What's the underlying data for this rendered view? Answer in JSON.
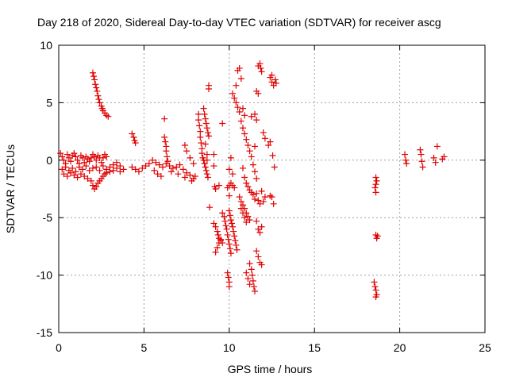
{
  "chart_data": {
    "type": "scatter",
    "title": "Day 218 of 2020, Sidereal Day-to-day VTEC variation (SDTVAR) for receiver ascg",
    "xlabel": "GPS time / hours",
    "ylabel": "SDTVAR / TECUs",
    "xlim": [
      0,
      25
    ],
    "ylim": [
      -15,
      10
    ],
    "xticks": [
      0,
      5,
      10,
      15,
      20,
      25
    ],
    "yticks": [
      -15,
      -10,
      -5,
      0,
      5,
      10
    ],
    "grid": true,
    "marker": "plus",
    "color": "#e00000",
    "series": [
      {
        "name": "SDTVAR",
        "points": [
          [
            0.1,
            0.6
          ],
          [
            0.2,
            0.3
          ],
          [
            0.3,
            0.0
          ],
          [
            0.4,
            -0.3
          ],
          [
            0.5,
            0.5
          ],
          [
            0.6,
            0.2
          ],
          [
            0.7,
            -0.1
          ],
          [
            0.8,
            0.4
          ],
          [
            0.9,
            0.6
          ],
          [
            1.0,
            0.3
          ],
          [
            1.1,
            0.0
          ],
          [
            1.2,
            -0.3
          ],
          [
            1.3,
            0.4
          ],
          [
            1.4,
            0.2
          ],
          [
            1.5,
            -0.2
          ],
          [
            1.6,
            0.3
          ],
          [
            1.7,
            0.1
          ],
          [
            1.8,
            -0.1
          ],
          [
            1.9,
            0.2
          ],
          [
            2.0,
            0.5
          ],
          [
            2.1,
            0.3
          ],
          [
            2.2,
            0.0
          ],
          [
            2.3,
            0.4
          ],
          [
            2.4,
            0.2
          ],
          [
            2.5,
            -0.2
          ],
          [
            2.6,
            0.2
          ],
          [
            2.7,
            0.5
          ],
          [
            2.8,
            0.3
          ],
          [
            0.2,
            -0.8
          ],
          [
            0.4,
            -0.6
          ],
          [
            0.6,
            -0.9
          ],
          [
            0.8,
            -0.7
          ],
          [
            1.0,
            -1.0
          ],
          [
            1.2,
            -0.6
          ],
          [
            1.4,
            -0.8
          ],
          [
            1.6,
            -0.5
          ],
          [
            1.8,
            -0.9
          ],
          [
            2.0,
            -0.7
          ],
          [
            2.2,
            -0.6
          ],
          [
            2.4,
            -0.9
          ],
          [
            2.6,
            -0.5
          ],
          [
            2.8,
            -0.8
          ],
          [
            3.0,
            -0.6
          ],
          [
            3.2,
            -0.9
          ],
          [
            3.4,
            -0.7
          ],
          [
            3.6,
            -1.0
          ],
          [
            0.3,
            -1.2
          ],
          [
            0.5,
            -1.4
          ],
          [
            0.7,
            -1.1
          ],
          [
            0.9,
            -1.3
          ],
          [
            1.1,
            -1.5
          ],
          [
            1.3,
            -1.2
          ],
          [
            1.5,
            -1.4
          ],
          [
            1.7,
            -1.6
          ],
          [
            1.9,
            -1.8
          ],
          [
            2.0,
            -2.2
          ],
          [
            2.1,
            -2.5
          ],
          [
            2.2,
            -2.3
          ],
          [
            2.3,
            -2.0
          ],
          [
            2.4,
            -1.8
          ],
          [
            2.5,
            -1.6
          ],
          [
            2.6,
            -1.4
          ],
          [
            2.7,
            -1.2
          ],
          [
            2.8,
            -1.1
          ],
          [
            3.0,
            -1.0
          ],
          [
            3.2,
            -0.4
          ],
          [
            3.4,
            -0.2
          ],
          [
            3.6,
            -0.5
          ],
          [
            3.8,
            -0.8
          ],
          [
            2.0,
            7.6
          ],
          [
            2.05,
            7.3
          ],
          [
            2.1,
            7.0
          ],
          [
            2.15,
            6.6
          ],
          [
            2.2,
            6.3
          ],
          [
            2.25,
            6.0
          ],
          [
            2.3,
            5.6
          ],
          [
            2.35,
            5.3
          ],
          [
            2.4,
            5.0
          ],
          [
            2.5,
            4.7
          ],
          [
            2.55,
            4.5
          ],
          [
            2.6,
            4.3
          ],
          [
            2.7,
            4.1
          ],
          [
            2.8,
            3.9
          ],
          [
            2.9,
            3.8
          ],
          [
            4.3,
            2.3
          ],
          [
            4.4,
            2.0
          ],
          [
            4.45,
            1.7
          ],
          [
            4.5,
            1.5
          ],
          [
            4.3,
            -0.6
          ],
          [
            4.5,
            -0.8
          ],
          [
            4.7,
            -1.0
          ],
          [
            4.9,
            -0.7
          ],
          [
            5.1,
            -0.5
          ],
          [
            5.3,
            -0.3
          ],
          [
            5.5,
            0.0
          ],
          [
            5.7,
            -0.2
          ],
          [
            5.9,
            -0.4
          ],
          [
            6.1,
            -0.6
          ],
          [
            6.3,
            -0.3
          ],
          [
            6.5,
            -0.5
          ],
          [
            6.7,
            -0.7
          ],
          [
            6.9,
            -0.6
          ],
          [
            7.1,
            -0.4
          ],
          [
            7.3,
            -0.8
          ],
          [
            7.5,
            -1.1
          ],
          [
            7.7,
            -1.3
          ],
          [
            7.9,
            -1.6
          ],
          [
            5.6,
            -0.9
          ],
          [
            5.8,
            -1.2
          ],
          [
            6.0,
            -1.4
          ],
          [
            6.6,
            -1.0
          ],
          [
            7.0,
            -1.2
          ],
          [
            7.4,
            -1.5
          ],
          [
            7.8,
            -1.8
          ],
          [
            8.0,
            -1.4
          ],
          [
            6.2,
            3.6
          ],
          [
            6.2,
            2.0
          ],
          [
            6.25,
            1.6
          ],
          [
            6.3,
            1.2
          ],
          [
            6.3,
            0.8
          ],
          [
            6.35,
            0.3
          ],
          [
            6.4,
            -0.1
          ],
          [
            7.4,
            1.3
          ],
          [
            7.5,
            0.8
          ],
          [
            7.7,
            0.2
          ],
          [
            7.9,
            -0.3
          ],
          [
            8.2,
            4.0
          ],
          [
            8.2,
            3.5
          ],
          [
            8.25,
            3.0
          ],
          [
            8.3,
            2.5
          ],
          [
            8.3,
            2.0
          ],
          [
            8.35,
            1.5
          ],
          [
            8.4,
            1.0
          ],
          [
            8.4,
            0.6
          ],
          [
            8.45,
            0.2
          ],
          [
            8.5,
            0.0
          ],
          [
            8.55,
            -0.3
          ],
          [
            8.6,
            -0.6
          ],
          [
            8.65,
            -0.9
          ],
          [
            8.7,
            -1.2
          ],
          [
            8.75,
            -1.5
          ],
          [
            8.5,
            4.5
          ],
          [
            8.55,
            4.0
          ],
          [
            8.6,
            3.6
          ],
          [
            8.65,
            3.2
          ],
          [
            8.7,
            2.8
          ],
          [
            8.75,
            2.4
          ],
          [
            8.8,
            2.1
          ],
          [
            8.6,
            1.4
          ],
          [
            8.7,
            0.5
          ],
          [
            8.8,
            6.5
          ],
          [
            8.8,
            6.2
          ],
          [
            8.7,
            0.0
          ],
          [
            8.85,
            -4.1
          ],
          [
            9.1,
            0.5
          ],
          [
            9.1,
            -0.5
          ],
          [
            9.15,
            -2.3
          ],
          [
            9.2,
            -2.5
          ],
          [
            9.4,
            -2.2
          ],
          [
            9.1,
            -5.5
          ],
          [
            9.2,
            -5.8
          ],
          [
            9.3,
            -6.2
          ],
          [
            9.35,
            -6.5
          ],
          [
            9.4,
            -6.8
          ],
          [
            9.5,
            -7.0
          ],
          [
            9.6,
            -7.2
          ],
          [
            9.2,
            -8.0
          ],
          [
            9.3,
            -7.6
          ],
          [
            9.4,
            -7.2
          ],
          [
            9.5,
            -6.9
          ],
          [
            9.6,
            -4.6
          ],
          [
            9.7,
            -4.9
          ],
          [
            9.75,
            -5.3
          ],
          [
            9.8,
            -5.7
          ],
          [
            9.85,
            -6.0
          ],
          [
            9.9,
            -6.5
          ],
          [
            9.95,
            -6.9
          ],
          [
            10.0,
            -7.3
          ],
          [
            10.05,
            -7.7
          ],
          [
            10.1,
            -8.1
          ],
          [
            10.0,
            -4.4
          ],
          [
            10.05,
            -4.8
          ],
          [
            10.1,
            -5.2
          ],
          [
            10.15,
            -5.5
          ],
          [
            10.2,
            -5.8
          ],
          [
            10.25,
            -6.2
          ],
          [
            10.3,
            -6.6
          ],
          [
            10.35,
            -7.0
          ],
          [
            10.4,
            -7.4
          ],
          [
            10.45,
            -7.8
          ],
          [
            9.9,
            -2.4
          ],
          [
            10.0,
            -2.2
          ],
          [
            10.1,
            -2.0
          ],
          [
            10.2,
            -2.2
          ],
          [
            10.3,
            -2.4
          ],
          [
            9.9,
            -9.8
          ],
          [
            9.95,
            -10.2
          ],
          [
            10.0,
            -10.6
          ],
          [
            10.0,
            -11.0
          ],
          [
            10.0,
            -0.8
          ],
          [
            10.1,
            0.2
          ],
          [
            10.2,
            -1.2
          ],
          [
            9.6,
            3.2
          ],
          [
            10.0,
            -3.1
          ],
          [
            10.4,
            6.5
          ],
          [
            10.5,
            7.8
          ],
          [
            10.6,
            8.0
          ],
          [
            10.7,
            7.1
          ],
          [
            10.2,
            5.8
          ],
          [
            10.3,
            5.4
          ],
          [
            10.4,
            5.0
          ],
          [
            10.5,
            4.6
          ],
          [
            10.6,
            4.2
          ],
          [
            10.8,
            4.5
          ],
          [
            10.9,
            3.9
          ],
          [
            10.7,
            3.4
          ],
          [
            10.8,
            2.8
          ],
          [
            10.9,
            2.3
          ],
          [
            11.0,
            1.8
          ],
          [
            11.1,
            1.3
          ],
          [
            11.2,
            0.8
          ],
          [
            11.3,
            0.3
          ],
          [
            10.8,
            -0.7
          ],
          [
            10.9,
            -1.5
          ],
          [
            11.0,
            -2.0
          ],
          [
            11.1,
            -2.3
          ],
          [
            11.2,
            -2.6
          ],
          [
            11.3,
            -2.8
          ],
          [
            11.4,
            -3.0
          ],
          [
            10.6,
            -3.2
          ],
          [
            10.7,
            -3.6
          ],
          [
            10.8,
            -3.9
          ],
          [
            10.9,
            -4.2
          ],
          [
            11.0,
            -4.6
          ],
          [
            11.1,
            -4.9
          ],
          [
            11.2,
            -5.2
          ],
          [
            10.7,
            -4.2
          ],
          [
            10.8,
            -4.6
          ],
          [
            10.9,
            -5.0
          ],
          [
            11.0,
            -5.4
          ],
          [
            11.2,
            -9.0
          ],
          [
            11.3,
            -9.5
          ],
          [
            11.35,
            -10.0
          ],
          [
            11.4,
            -10.5
          ],
          [
            11.45,
            -11.0
          ],
          [
            11.5,
            -11.4
          ],
          [
            11.0,
            -9.8
          ],
          [
            11.1,
            -10.3
          ],
          [
            11.2,
            -10.8
          ],
          [
            11.6,
            -7.9
          ],
          [
            11.7,
            -8.4
          ],
          [
            11.8,
            -8.9
          ],
          [
            11.9,
            -9.1
          ],
          [
            11.7,
            -6.0
          ],
          [
            11.8,
            -6.3
          ],
          [
            11.9,
            -5.8
          ],
          [
            11.6,
            -5.3
          ],
          [
            11.4,
            -0.4
          ],
          [
            11.5,
            -1.0
          ],
          [
            11.6,
            -1.6
          ],
          [
            11.5,
            1.2
          ],
          [
            11.6,
            3.5
          ],
          [
            11.7,
            8.2
          ],
          [
            11.8,
            8.4
          ],
          [
            11.85,
            8.0
          ],
          [
            11.9,
            7.7
          ],
          [
            11.6,
            6.0
          ],
          [
            11.7,
            5.8
          ],
          [
            11.3,
            3.8
          ],
          [
            11.5,
            4.0
          ],
          [
            11.5,
            -3.4
          ],
          [
            11.6,
            -2.9
          ],
          [
            11.7,
            -3.5
          ],
          [
            11.8,
            -3.8
          ],
          [
            11.9,
            -2.7
          ],
          [
            12.0,
            -3.6
          ],
          [
            12.1,
            -3.2
          ],
          [
            12.0,
            2.4
          ],
          [
            12.1,
            1.9
          ],
          [
            12.3,
            1.3
          ],
          [
            12.4,
            1.6
          ],
          [
            12.4,
            7.2
          ],
          [
            12.5,
            6.8
          ],
          [
            12.6,
            6.5
          ],
          [
            12.7,
            7.0
          ],
          [
            12.75,
            6.7
          ],
          [
            12.5,
            7.4
          ],
          [
            12.4,
            -3.1
          ],
          [
            12.5,
            -3.2
          ],
          [
            12.6,
            -3.8
          ],
          [
            12.65,
            -0.6
          ],
          [
            12.55,
            0.4
          ],
          [
            18.6,
            -1.5
          ],
          [
            18.65,
            -1.8
          ],
          [
            18.6,
            -2.1
          ],
          [
            18.55,
            -2.4
          ],
          [
            18.6,
            -2.8
          ],
          [
            18.6,
            -6.5
          ],
          [
            18.65,
            -6.8
          ],
          [
            18.7,
            -6.6
          ],
          [
            18.5,
            -10.6
          ],
          [
            18.55,
            -11.0
          ],
          [
            18.6,
            -11.3
          ],
          [
            18.65,
            -11.7
          ],
          [
            18.6,
            -11.9
          ],
          [
            20.3,
            0.5
          ],
          [
            20.35,
            0.0
          ],
          [
            20.4,
            -0.3
          ],
          [
            21.2,
            0.9
          ],
          [
            21.25,
            0.5
          ],
          [
            21.3,
            -0.1
          ],
          [
            21.35,
            -0.6
          ],
          [
            22.0,
            0.2
          ],
          [
            22.1,
            -0.2
          ],
          [
            22.2,
            1.2
          ],
          [
            22.5,
            0.1
          ],
          [
            22.6,
            0.3
          ]
        ]
      }
    ]
  }
}
